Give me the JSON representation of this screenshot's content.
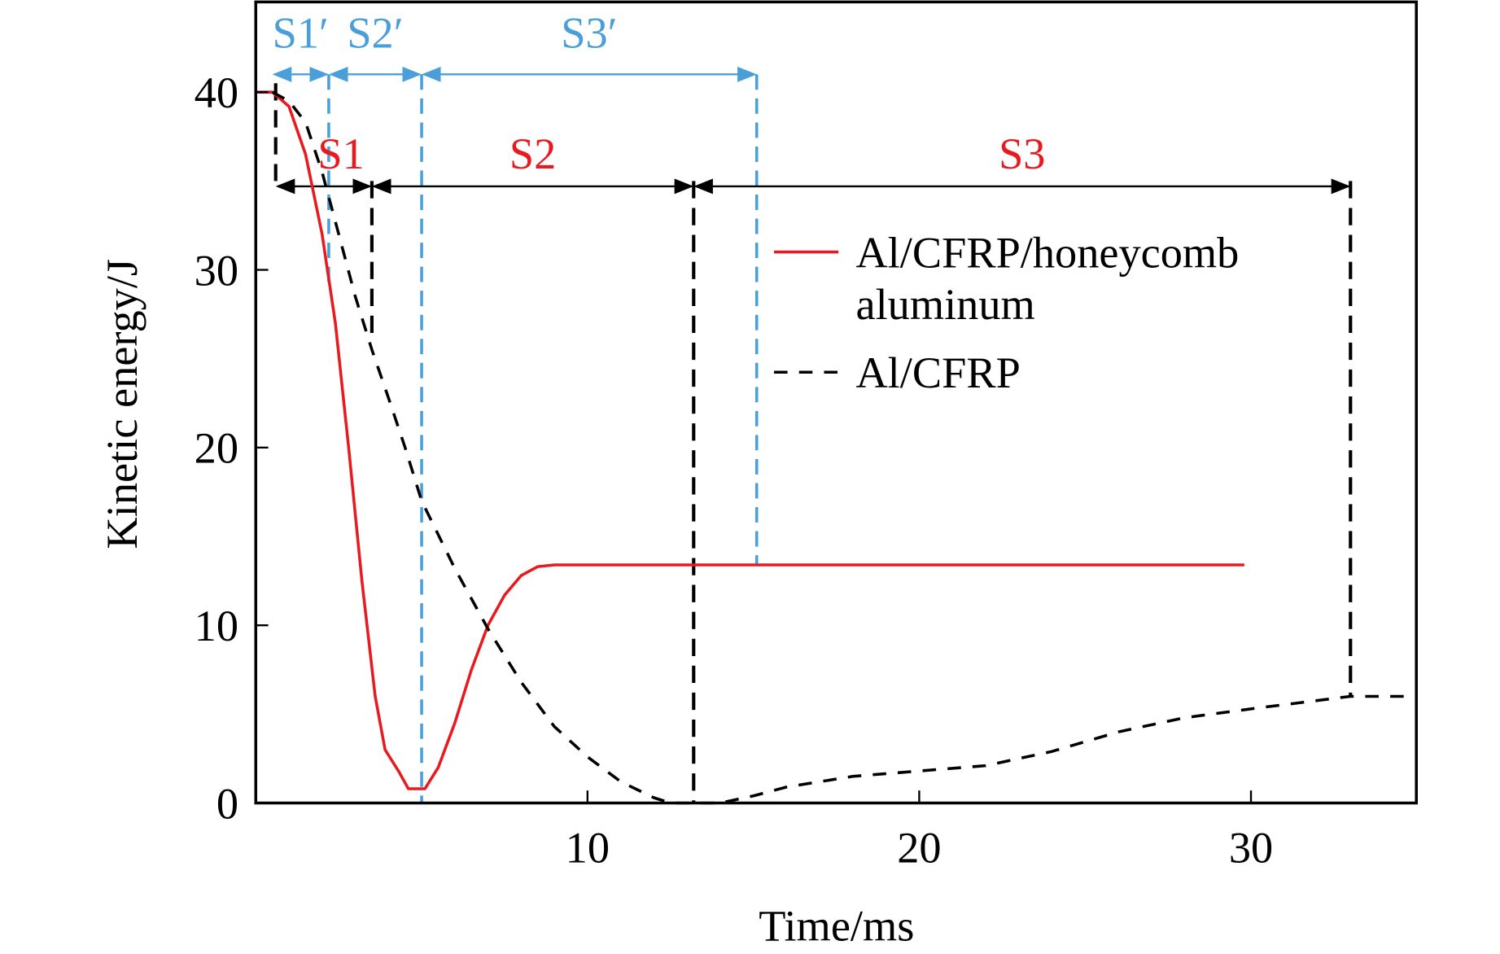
{
  "chart_data": {
    "type": "line",
    "title": "",
    "xlabel": "Time/ms",
    "ylabel": "Kinetic energy/J",
    "xlim": [
      0,
      35
    ],
    "ylim": [
      0,
      45
    ],
    "xticks": [
      10,
      20,
      30
    ],
    "yticks": [
      0,
      10,
      20,
      30,
      40
    ],
    "grid": false,
    "legend_placement": "center-right",
    "series": [
      {
        "name": "Al/CFRP/honeycomb aluminum",
        "color": "#e8191f",
        "style": "solid",
        "x": [
          0,
          0.5,
          1.0,
          1.5,
          2.0,
          2.4,
          2.8,
          3.2,
          3.6,
          3.9,
          4.3,
          4.6,
          5.1,
          5.5,
          6.0,
          6.5,
          7.0,
          7.5,
          8.0,
          8.5,
          9.0,
          29.8
        ],
        "y": [
          40,
          40,
          39.2,
          36.5,
          32,
          27,
          20,
          12.5,
          6,
          3,
          1.8,
          0.8,
          0.8,
          2,
          4.5,
          7.5,
          10,
          11.7,
          12.8,
          13.3,
          13.4,
          13.4
        ]
      },
      {
        "name": "Al/CFRP",
        "color": "#000000",
        "style": "dashed",
        "x": [
          0.5,
          1.0,
          1.5,
          2.0,
          2.5,
          3.0,
          3.5,
          4.0,
          4.5,
          5.0,
          6.0,
          7.0,
          8.0,
          9.0,
          10.0,
          11.0,
          12.0,
          12.5,
          14.0,
          15.0,
          16.0,
          18.0,
          20.0,
          22.0,
          24.0,
          26.0,
          28.0,
          30.0,
          33.0,
          35.0
        ],
        "y": [
          40,
          39.5,
          38.3,
          35.5,
          32,
          28.5,
          25.5,
          22.8,
          20,
          17,
          13.2,
          9.8,
          6.8,
          4.3,
          2.6,
          1.2,
          0.3,
          0,
          0,
          0.4,
          0.9,
          1.5,
          1.8,
          2.1,
          2.9,
          4.0,
          4.8,
          5.3,
          6.0,
          6.0
        ]
      }
    ],
    "stage_markers_blue": {
      "color": "#4a9fd8",
      "boundaries_ms": [
        0.5,
        2.2,
        5.0,
        15.1
      ],
      "labels": [
        "S1′",
        "S2′",
        "S3′"
      ]
    },
    "stage_markers_black": {
      "color": "#000000",
      "label_color": "#e8191f",
      "boundaries_ms": [
        0.6,
        3.5,
        13.2,
        33.0
      ],
      "labels": [
        "S1",
        "S2",
        "S3"
      ]
    }
  }
}
